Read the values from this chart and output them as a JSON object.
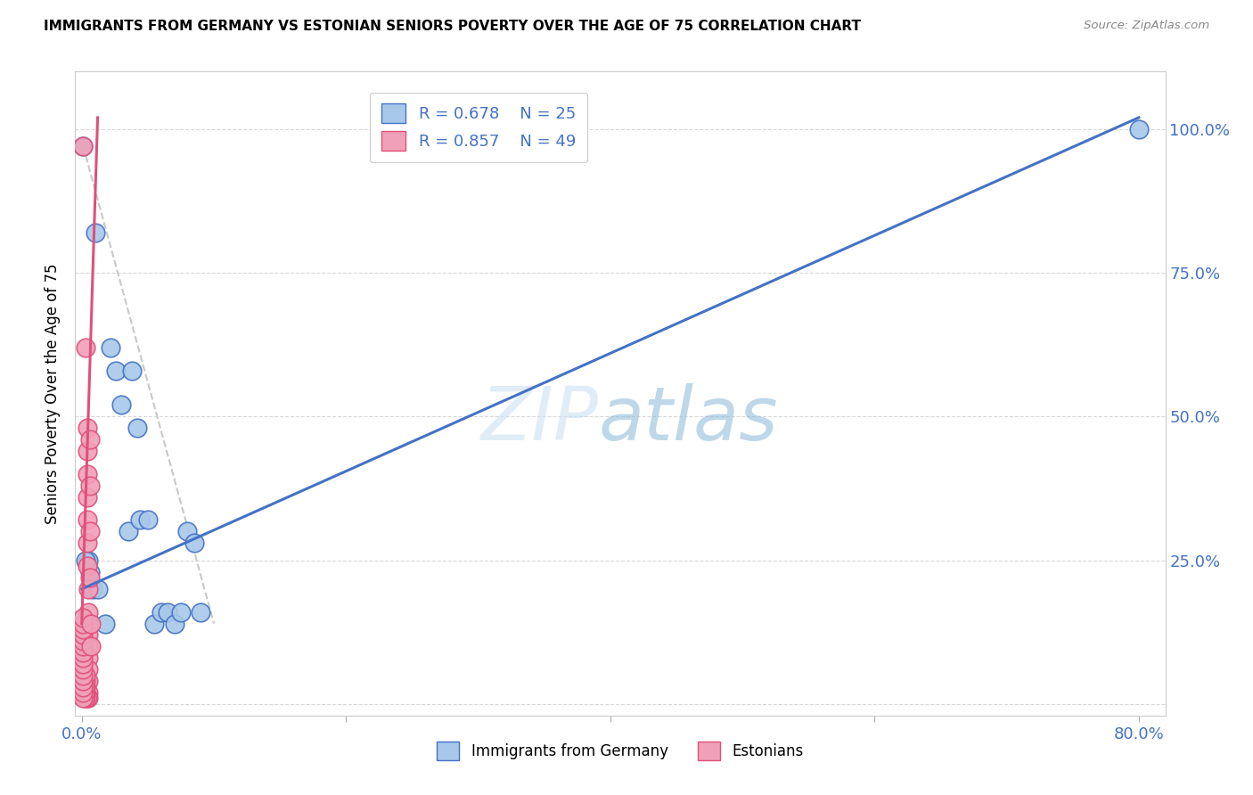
{
  "title": "IMMIGRANTS FROM GERMANY VS ESTONIAN SENIORS POVERTY OVER THE AGE OF 75 CORRELATION CHART",
  "source": "Source: ZipAtlas.com",
  "ylabel": "Seniors Poverty Over the Age of 75",
  "color_blue": "#a8c8ea",
  "color_pink": "#f0a0b8",
  "trendline_blue": "#4472c4",
  "trendline_pink": "#e0507a",
  "trendline_dashed_color": "#c8c8c8",
  "watermark_color": "#ddeeff",
  "background_color": "#ffffff",
  "grid_color": "#d8d8d8",
  "blue_scatter": [
    [
      0.001,
      0.97
    ],
    [
      0.01,
      0.82
    ],
    [
      0.022,
      0.62
    ],
    [
      0.026,
      0.58
    ],
    [
      0.03,
      0.52
    ],
    [
      0.035,
      0.3
    ],
    [
      0.038,
      0.58
    ],
    [
      0.042,
      0.48
    ],
    [
      0.044,
      0.32
    ],
    [
      0.05,
      0.32
    ],
    [
      0.055,
      0.14
    ],
    [
      0.06,
      0.16
    ],
    [
      0.065,
      0.16
    ],
    [
      0.07,
      0.14
    ],
    [
      0.075,
      0.16
    ],
    [
      0.08,
      0.3
    ],
    [
      0.085,
      0.28
    ],
    [
      0.09,
      0.16
    ],
    [
      0.005,
      0.25
    ],
    [
      0.006,
      0.23
    ],
    [
      0.008,
      0.2
    ],
    [
      0.012,
      0.2
    ],
    [
      0.018,
      0.14
    ],
    [
      0.8,
      1.0
    ],
    [
      0.003,
      0.25
    ]
  ],
  "pink_scatter": [
    [
      0.001,
      0.97
    ],
    [
      0.003,
      0.62
    ],
    [
      0.004,
      0.48
    ],
    [
      0.004,
      0.44
    ],
    [
      0.004,
      0.4
    ],
    [
      0.004,
      0.36
    ],
    [
      0.004,
      0.32
    ],
    [
      0.004,
      0.28
    ],
    [
      0.004,
      0.24
    ],
    [
      0.005,
      0.2
    ],
    [
      0.005,
      0.16
    ],
    [
      0.005,
      0.14
    ],
    [
      0.005,
      0.12
    ],
    [
      0.005,
      0.1
    ],
    [
      0.005,
      0.08
    ],
    [
      0.005,
      0.06
    ],
    [
      0.005,
      0.04
    ],
    [
      0.005,
      0.02
    ],
    [
      0.005,
      0.01
    ],
    [
      0.004,
      0.01
    ],
    [
      0.003,
      0.01
    ],
    [
      0.003,
      0.02
    ],
    [
      0.003,
      0.03
    ],
    [
      0.003,
      0.04
    ],
    [
      0.003,
      0.05
    ],
    [
      0.002,
      0.01
    ],
    [
      0.002,
      0.02
    ],
    [
      0.002,
      0.03
    ],
    [
      0.001,
      0.01
    ],
    [
      0.001,
      0.02
    ],
    [
      0.001,
      0.03
    ],
    [
      0.001,
      0.04
    ],
    [
      0.001,
      0.05
    ],
    [
      0.001,
      0.06
    ],
    [
      0.001,
      0.07
    ],
    [
      0.001,
      0.08
    ],
    [
      0.001,
      0.09
    ],
    [
      0.001,
      0.1
    ],
    [
      0.001,
      0.11
    ],
    [
      0.001,
      0.12
    ],
    [
      0.001,
      0.13
    ],
    [
      0.001,
      0.14
    ],
    [
      0.001,
      0.15
    ],
    [
      0.006,
      0.46
    ],
    [
      0.006,
      0.38
    ],
    [
      0.006,
      0.3
    ],
    [
      0.006,
      0.22
    ],
    [
      0.007,
      0.14
    ],
    [
      0.007,
      0.1
    ]
  ],
  "blue_trend_x": [
    0.0,
    0.8
  ],
  "blue_trend_y": [
    0.2,
    1.02
  ],
  "pink_trend_x": [
    0.0,
    0.012
  ],
  "pink_trend_y": [
    0.14,
    1.02
  ],
  "dashed_trend_x": [
    0.001,
    0.1
  ],
  "dashed_trend_y": [
    0.97,
    0.14
  ],
  "xlim": [
    -0.005,
    0.82
  ],
  "ylim": [
    -0.02,
    1.1
  ],
  "x_ticks": [
    0.0,
    0.2,
    0.4,
    0.6,
    0.8
  ],
  "x_tick_labels": [
    "0.0%",
    "",
    "",
    "",
    "80.0%"
  ],
  "y_ticks": [
    0.0,
    0.25,
    0.5,
    0.75,
    1.0
  ],
  "y_tick_labels_right": [
    "",
    "25.0%",
    "50.0%",
    "75.0%",
    "100.0%"
  ]
}
